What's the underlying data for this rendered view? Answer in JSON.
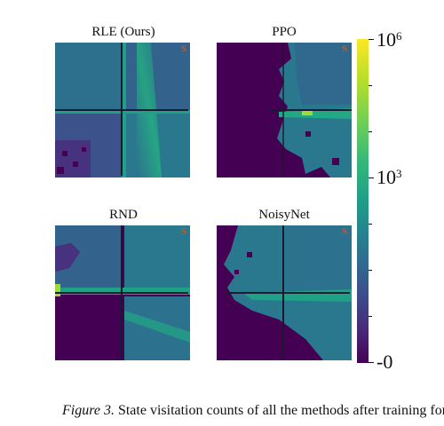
{
  "panels": [
    {
      "id": "rle",
      "title": "RLE (Ours)",
      "marker": "S"
    },
    {
      "id": "ppo",
      "title": "PPO",
      "marker": "S"
    },
    {
      "id": "rnd",
      "title": "RND",
      "marker": "S"
    },
    {
      "id": "noisynet",
      "title": "NoisyNet",
      "marker": "S"
    }
  ],
  "colorbar": {
    "scale": "symlog",
    "colormap": "viridis",
    "top_label_base": "10",
    "top_label_exp": "6",
    "mid_label_base": "10",
    "mid_label_exp": "3",
    "bottom_label": "-0"
  },
  "caption": {
    "label": "Figure 3.",
    "text": " State visitation counts of all the methods after training for"
  },
  "colors": {
    "unvisited": "#440154",
    "walls": "#1a1a2e",
    "start_marker": "#d1551f"
  }
}
